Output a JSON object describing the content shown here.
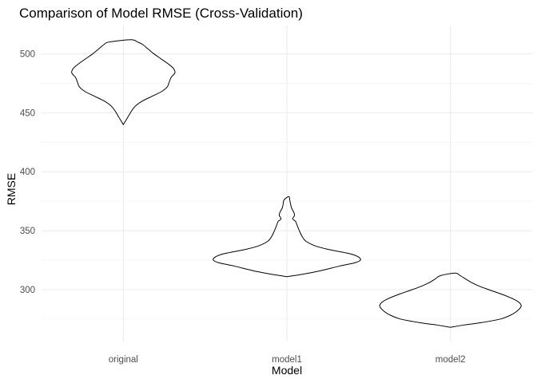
{
  "chart_data": {
    "type": "violin",
    "title": "Comparison of Model RMSE (Cross-Validation)",
    "xlabel": "Model",
    "ylabel": "RMSE",
    "categories": [
      "original",
      "model1",
      "model2"
    ],
    "ylim": [
      256,
      524
    ],
    "yticks": [
      300,
      350,
      400,
      450,
      500
    ],
    "grid": true,
    "theme": "minimal",
    "violins": [
      {
        "category": "original",
        "profile": [
          [
            440,
            0
          ],
          [
            444,
            3
          ],
          [
            448,
            6
          ],
          [
            452,
            9
          ],
          [
            456,
            13
          ],
          [
            460,
            20
          ],
          [
            464,
            30
          ],
          [
            468,
            40
          ],
          [
            472,
            46
          ],
          [
            476,
            48
          ],
          [
            480,
            50
          ],
          [
            484,
            54
          ],
          [
            488,
            52
          ],
          [
            492,
            46
          ],
          [
            496,
            39
          ],
          [
            500,
            32
          ],
          [
            504,
            26
          ],
          [
            508,
            20
          ],
          [
            510,
            15
          ],
          [
            512,
            8
          ]
        ]
      },
      {
        "category": "model1",
        "profile": [
          [
            311,
            0
          ],
          [
            313,
            16
          ],
          [
            316,
            35
          ],
          [
            320,
            55
          ],
          [
            323,
            72
          ],
          [
            326,
            77
          ],
          [
            330,
            68
          ],
          [
            334,
            44
          ],
          [
            337,
            30
          ],
          [
            341,
            20
          ],
          [
            345,
            16
          ],
          [
            350,
            13
          ],
          [
            354,
            11
          ],
          [
            358,
            9
          ],
          [
            360,
            6
          ],
          [
            363,
            8
          ],
          [
            366,
            7
          ],
          [
            369,
            5
          ],
          [
            372,
            4
          ],
          [
            376,
            3
          ],
          [
            379,
            2
          ]
        ]
      },
      {
        "category": "model2",
        "profile": [
          [
            268,
            0
          ],
          [
            270,
            14
          ],
          [
            272,
            32
          ],
          [
            275,
            52
          ],
          [
            278,
            62
          ],
          [
            282,
            70
          ],
          [
            286,
            74
          ],
          [
            289,
            72
          ],
          [
            292,
            66
          ],
          [
            296,
            54
          ],
          [
            300,
            40
          ],
          [
            303,
            30
          ],
          [
            306,
            22
          ],
          [
            309,
            16
          ],
          [
            312,
            10
          ],
          [
            314,
            5
          ]
        ]
      }
    ]
  }
}
